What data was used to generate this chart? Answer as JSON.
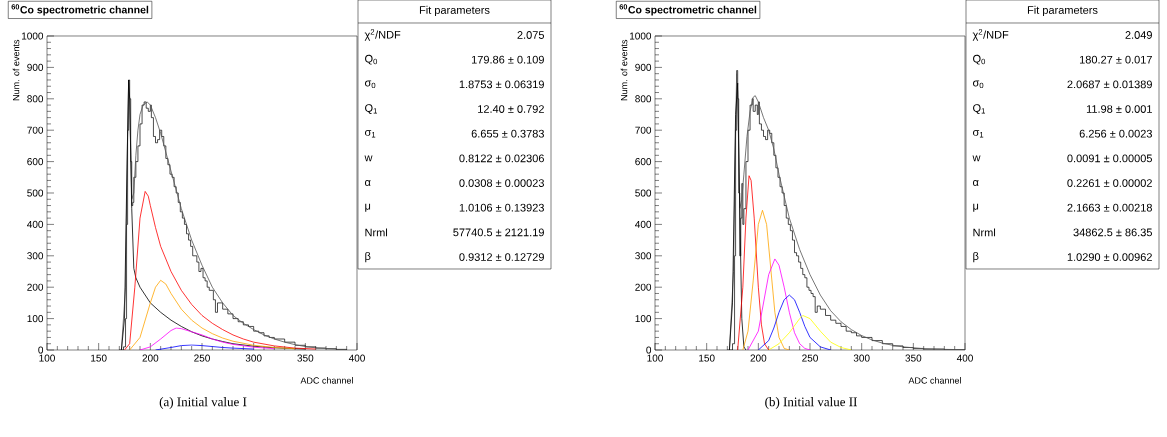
{
  "chart_data": [
    {
      "type": "line",
      "title": "$^{60}$Co spectrometric channel",
      "xlabel": "ADC channel",
      "ylabel": "Num. of events",
      "xlim": [
        100,
        400
      ],
      "ylim": [
        0,
        1000
      ],
      "xticks": [
        100,
        150,
        200,
        250,
        300,
        350,
        400
      ],
      "yticks": [
        0,
        100,
        200,
        300,
        400,
        500,
        600,
        700,
        800,
        900,
        1000
      ],
      "marker": "none",
      "annotations": [
        "Fit parameters",
        "χ$^{2}$/NDF",
        "2.075",
        "Q$_{0}$",
        "179.86 ± 0.109",
        "σ$_{0}$",
        "1.8753 ± 0.06319",
        "Q$_{1}$",
        "12.40 ± 0.792",
        "σ$_{1}$",
        "6.655 ± 0.3783",
        "w",
        "0.8122 ± 0.02306",
        "α",
        "0.0308 ± 0.00023",
        "μ",
        "1.0106 ± 0.13923",
        "Nrml",
        "57740.5 ± 2121.19",
        "β",
        "0.9312 ± 0.12729",
        "(a) Initial value I"
      ],
      "series": [
        {
          "type": "step",
          "color": "#000000",
          "x": [
            170,
            174,
            176,
            177,
            178,
            179,
            180,
            181,
            182,
            183,
            184,
            186,
            188,
            190,
            192,
            194,
            196,
            198,
            200,
            201,
            203,
            205,
            207,
            209,
            211,
            213,
            215,
            217,
            219,
            221,
            223,
            225,
            227,
            229,
            231,
            233,
            235,
            237,
            239,
            241,
            243,
            245,
            247,
            249,
            251,
            253,
            255,
            257,
            259,
            261,
            263,
            265,
            270,
            275,
            280,
            285,
            290,
            295,
            300,
            305,
            310,
            315,
            320,
            330,
            340,
            350,
            360,
            370,
            380,
            390
          ],
          "values": [
            0,
            10,
            100,
            400,
            700,
            860,
            800,
            600,
            460,
            470,
            550,
            600,
            650,
            720,
            780,
            790,
            770,
            760,
            780,
            740,
            680,
            660,
            670,
            700,
            680,
            650,
            610,
            590,
            560,
            550,
            520,
            500,
            470,
            440,
            420,
            400,
            370,
            350,
            330,
            300,
            300,
            280,
            250,
            260,
            230,
            220,
            200,
            190,
            190,
            160,
            120,
            150,
            130,
            115,
            100,
            90,
            80,
            75,
            60,
            55,
            45,
            40,
            35,
            25,
            15,
            10,
            6,
            4,
            2,
            1
          ]
        },
        {
          "color": "#555555",
          "x": [
            172,
            176,
            178,
            179,
            180,
            182,
            184,
            186,
            188,
            190,
            193,
            197,
            200,
            205,
            210,
            215,
            220,
            230,
            240,
            250,
            260,
            270,
            280,
            290,
            300,
            310,
            320,
            330,
            340,
            350,
            360,
            380
          ],
          "values": [
            0,
            200,
            700,
            850,
            800,
            480,
            500,
            620,
            700,
            750,
            780,
            790,
            780,
            740,
            690,
            630,
            570,
            450,
            350,
            270,
            200,
            150,
            110,
            85,
            65,
            48,
            35,
            25,
            17,
            11,
            7,
            3
          ]
        },
        {
          "color": "#000000",
          "x": [
            172,
            175,
            177,
            179,
            180,
            182,
            184,
            186,
            190,
            200,
            210,
            220,
            230,
            240,
            250,
            260,
            270,
            280,
            300,
            320,
            350
          ],
          "values": [
            0,
            100,
            500,
            860,
            800,
            450,
            260,
            230,
            200,
            150,
            120,
            95,
            75,
            58,
            45,
            35,
            27,
            20,
            12,
            7,
            3
          ]
        },
        {
          "color": "#ff0000",
          "x": [
            175,
            180,
            185,
            190,
            195,
            198,
            200,
            205,
            210,
            220,
            230,
            240,
            250,
            260,
            270,
            280,
            290,
            300,
            320,
            340,
            360
          ],
          "values": [
            0,
            20,
            200,
            420,
            505,
            490,
            460,
            390,
            330,
            250,
            190,
            145,
            110,
            85,
            65,
            48,
            35,
            25,
            13,
            6,
            3
          ]
        },
        {
          "color": "#ffa500",
          "x": [
            180,
            190,
            200,
            205,
            210,
            215,
            220,
            230,
            240,
            250,
            260,
            270,
            280,
            300,
            320,
            340
          ],
          "values": [
            0,
            40,
            150,
            200,
            222,
            210,
            180,
            130,
            95,
            70,
            52,
            38,
            28,
            15,
            8,
            4
          ]
        },
        {
          "color": "#ff00ff",
          "x": [
            190,
            200,
            210,
            220,
            225,
            230,
            240,
            250,
            260,
            270,
            280,
            300,
            320
          ],
          "values": [
            0,
            10,
            35,
            62,
            70,
            68,
            58,
            48,
            35,
            25,
            18,
            9,
            4
          ]
        },
        {
          "color": "#0000ff",
          "x": [
            205,
            220,
            230,
            240,
            250,
            260,
            270,
            280,
            300
          ],
          "values": [
            0,
            8,
            14,
            16,
            14,
            11,
            8,
            6,
            3
          ]
        }
      ]
    },
    {
      "type": "line",
      "title": "$^{60}$Co spectrometric channel",
      "xlabel": "ADC channel",
      "ylabel": "Num. of events",
      "xlim": [
        100,
        400
      ],
      "ylim": [
        0,
        1000
      ],
      "xticks": [
        100,
        150,
        200,
        250,
        300,
        350,
        400
      ],
      "yticks": [
        0,
        100,
        200,
        300,
        400,
        500,
        600,
        700,
        800,
        900,
        1000
      ],
      "marker": "none",
      "annotations": [
        "Fit parameters",
        "χ$^{2}$/NDF",
        "2.049",
        "Q$_{0}$",
        "180.27 ± 0.017",
        "σ$_{0}$",
        "2.0687 ± 0.01389",
        "Q$_{1}$",
        "11.98 ± 0.001",
        "σ$_{1}$",
        "6.256 ± 0.0023",
        "w",
        "0.0091 ± 0.00005",
        "α",
        "0.2261 ± 0.00002",
        "μ",
        "2.1663 ± 0.00218",
        "Nrml",
        "34862.5 ± 86.35",
        "β",
        "1.0290 ± 0.00962",
        "(b) Initial value II"
      ],
      "series": [
        {
          "type": "step",
          "color": "#000000",
          "x": [
            170,
            175,
            177,
            178,
            179,
            180,
            181,
            182,
            183,
            184,
            185,
            186,
            188,
            190,
            192,
            194,
            195,
            197,
            199,
            200,
            201,
            203,
            205,
            207,
            209,
            211,
            213,
            215,
            217,
            219,
            221,
            223,
            225,
            227,
            229,
            231,
            233,
            235,
            237,
            239,
            241,
            243,
            245,
            247,
            249,
            251,
            253,
            255,
            257,
            260,
            265,
            270,
            275,
            280,
            285,
            290,
            295,
            300,
            310,
            320,
            330,
            340,
            350,
            360,
            380,
            400
          ],
          "values": [
            0,
            20,
            300,
            700,
            890,
            800,
            500,
            300,
            420,
            530,
            400,
            450,
            600,
            700,
            780,
            800,
            760,
            780,
            750,
            790,
            720,
            700,
            680,
            670,
            700,
            690,
            660,
            620,
            580,
            550,
            520,
            500,
            460,
            420,
            400,
            380,
            350,
            310,
            300,
            280,
            260,
            240,
            230,
            200,
            190,
            180,
            170,
            120,
            140,
            130,
            110,
            95,
            85,
            75,
            60,
            55,
            45,
            40,
            30,
            20,
            13,
            8,
            5,
            3,
            1,
            0
          ]
        },
        {
          "color": "#555555",
          "x": [
            172,
            176,
            178,
            179,
            180,
            182,
            184,
            186,
            189,
            192,
            195,
            197,
            200,
            205,
            210,
            215,
            220,
            230,
            240,
            250,
            260,
            270,
            280,
            290,
            300,
            310,
            320,
            330,
            340,
            360,
            380,
            400
          ],
          "values": [
            0,
            250,
            700,
            880,
            820,
            450,
            480,
            560,
            680,
            760,
            805,
            810,
            790,
            740,
            700,
            640,
            560,
            420,
            320,
            240,
            175,
            125,
            90,
            65,
            46,
            32,
            22,
            15,
            10,
            4,
            2,
            1
          ]
        },
        {
          "color": "#000000",
          "x": [
            172,
            175,
            178,
            180,
            182,
            184,
            186,
            188
          ],
          "values": [
            0,
            150,
            750,
            850,
            450,
            100,
            10,
            0
          ]
        },
        {
          "color": "#ff0000",
          "x": [
            180,
            185,
            188,
            191,
            193,
            196,
            200,
            203,
            206,
            210
          ],
          "values": [
            0,
            200,
            420,
            555,
            540,
            420,
            200,
            80,
            20,
            0
          ]
        },
        {
          "color": "#ffa500",
          "x": [
            185,
            190,
            195,
            200,
            204,
            208,
            212,
            216,
            220,
            225,
            230
          ],
          "values": [
            0,
            60,
            220,
            400,
            445,
            400,
            260,
            120,
            40,
            5,
            0
          ]
        },
        {
          "color": "#ff00ff",
          "x": [
            190,
            200,
            205,
            210,
            216,
            220,
            225,
            230,
            235,
            240,
            245,
            250
          ],
          "values": [
            0,
            60,
            150,
            240,
            290,
            270,
            200,
            120,
            55,
            20,
            5,
            0
          ]
        },
        {
          "color": "#0000ff",
          "x": [
            200,
            210,
            215,
            220,
            225,
            230,
            235,
            240,
            245,
            250,
            260,
            270
          ],
          "values": [
            0,
            30,
            70,
            120,
            160,
            175,
            160,
            120,
            75,
            40,
            10,
            0
          ]
        },
        {
          "color": "#ffff00",
          "x": [
            210,
            220,
            230,
            240,
            243,
            250,
            260,
            270,
            280,
            290
          ],
          "values": [
            0,
            20,
            55,
            100,
            110,
            100,
            60,
            25,
            8,
            0
          ]
        }
      ]
    }
  ]
}
